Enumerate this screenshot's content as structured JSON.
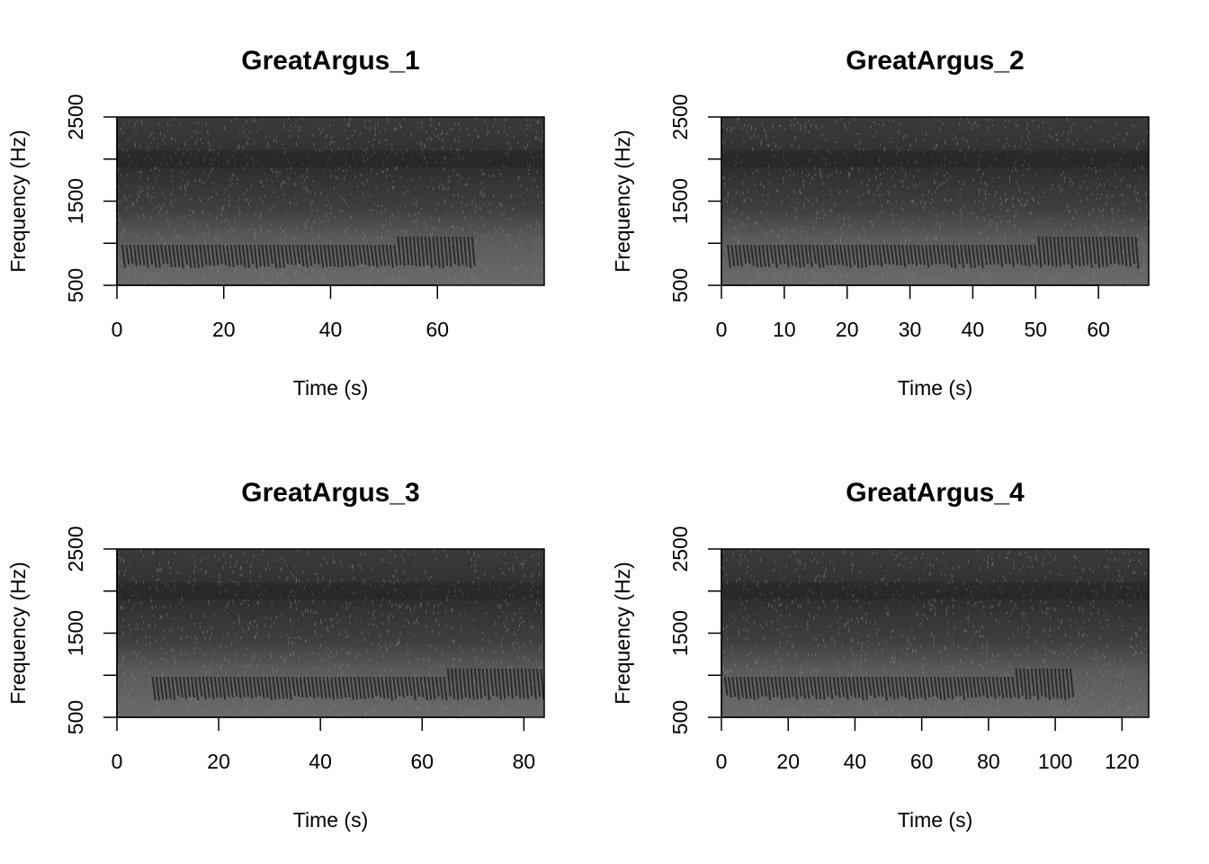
{
  "chart_data": [
    {
      "type": "heatmap",
      "title": "GreatArgus_1",
      "xlabel": "Time (s)",
      "ylabel": "Frequency (Hz)",
      "xlim": [
        0,
        80
      ],
      "ylim": [
        500,
        2500
      ],
      "xticks": [
        0,
        20,
        40,
        60
      ],
      "yticks": [
        500,
        1500,
        2500
      ],
      "ytick_marks": [
        500,
        1000,
        1500,
        2000,
        2500
      ],
      "colormap": "grayscale",
      "notes": "call pulses 700-1000 Hz, ~0-67 s",
      "call_end": 67,
      "rise_start": 52
    },
    {
      "type": "heatmap",
      "title": "GreatArgus_2",
      "xlabel": "Time (s)",
      "ylabel": "Frequency (Hz)",
      "xlim": [
        0,
        68
      ],
      "ylim": [
        500,
        2500
      ],
      "xticks": [
        0,
        10,
        20,
        30,
        40,
        50,
        60
      ],
      "yticks": [
        500,
        1500,
        2500
      ],
      "ytick_marks": [
        500,
        1000,
        1500,
        2000,
        2500
      ],
      "colormap": "grayscale",
      "call_end": 66,
      "rise_start": 50
    },
    {
      "type": "heatmap",
      "title": "GreatArgus_3",
      "xlabel": "Time (s)",
      "ylabel": "Frequency (Hz)",
      "xlim": [
        0,
        84
      ],
      "ylim": [
        500,
        2500
      ],
      "xticks": [
        0,
        20,
        40,
        60,
        80
      ],
      "yticks": [
        500,
        1500,
        2500
      ],
      "ytick_marks": [
        500,
        1000,
        1500,
        2000,
        2500
      ],
      "colormap": "grayscale",
      "call_start": 7,
      "call_end": 84,
      "rise_start": 65
    },
    {
      "type": "heatmap",
      "title": "GreatArgus_4",
      "xlabel": "Time (s)",
      "ylabel": "Frequency (Hz)",
      "xlim": [
        0,
        128
      ],
      "ylim": [
        500,
        2500
      ],
      "xticks": [
        0,
        20,
        40,
        60,
        80,
        100,
        120
      ],
      "yticks": [
        500,
        1500,
        2500
      ],
      "ytick_marks": [
        500,
        1000,
        1500,
        2000,
        2500
      ],
      "colormap": "grayscale",
      "call_end": 105,
      "rise_start": 88
    }
  ]
}
